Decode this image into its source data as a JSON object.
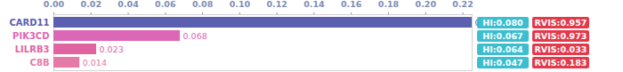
{
  "chart_data": {
    "type": "bar",
    "orientation": "horizontal",
    "categories": [
      "CARD11",
      "PIK3CD",
      "LILRB3",
      "C8B"
    ],
    "values": [
      0.225,
      0.068,
      0.023,
      0.014
    ],
    "colors": [
      "#5a5fb0",
      "#dc67b6",
      "#e0649f",
      "#e57aa8"
    ],
    "xlim": [
      0,
      0.225
    ],
    "xticks": [
      {
        "value": 0,
        "label": "0.00"
      },
      {
        "value": 0.02,
        "label": "0.02"
      },
      {
        "value": 0.04,
        "label": "0.04"
      },
      {
        "value": 0.06,
        "label": "0.06"
      },
      {
        "value": 0.08,
        "label": "0.08"
      },
      {
        "value": 0.1,
        "label": "0.10"
      },
      {
        "value": 0.12,
        "label": "0.12"
      },
      {
        "value": 0.14,
        "label": "0.14"
      },
      {
        "value": 0.16,
        "label": "0.16"
      },
      {
        "value": 0.18,
        "label": "0.18"
      },
      {
        "value": 0.2,
        "label": "0.20"
      },
      {
        "value": 0.22,
        "label": "0.22"
      }
    ],
    "grid": false,
    "data_labels": true,
    "side_scores": [
      {
        "color": "#3bbfd0",
        "values": [
          0.08,
          0.067,
          0.064,
          0.047
        ],
        "value_labels": [
          "HI:0.080",
          "HI:0.067",
          "HI:0.064",
          "HI:0.047"
        ]
      },
      {
        "color": "#e3394b",
        "values": [
          0.957,
          0.973,
          0.033,
          0.183
        ],
        "value_labels": [
          "RVIS:0.957",
          "RVIS:0.973",
          "RVIS:0.033",
          "RVIS:0.183"
        ]
      }
    ]
  }
}
